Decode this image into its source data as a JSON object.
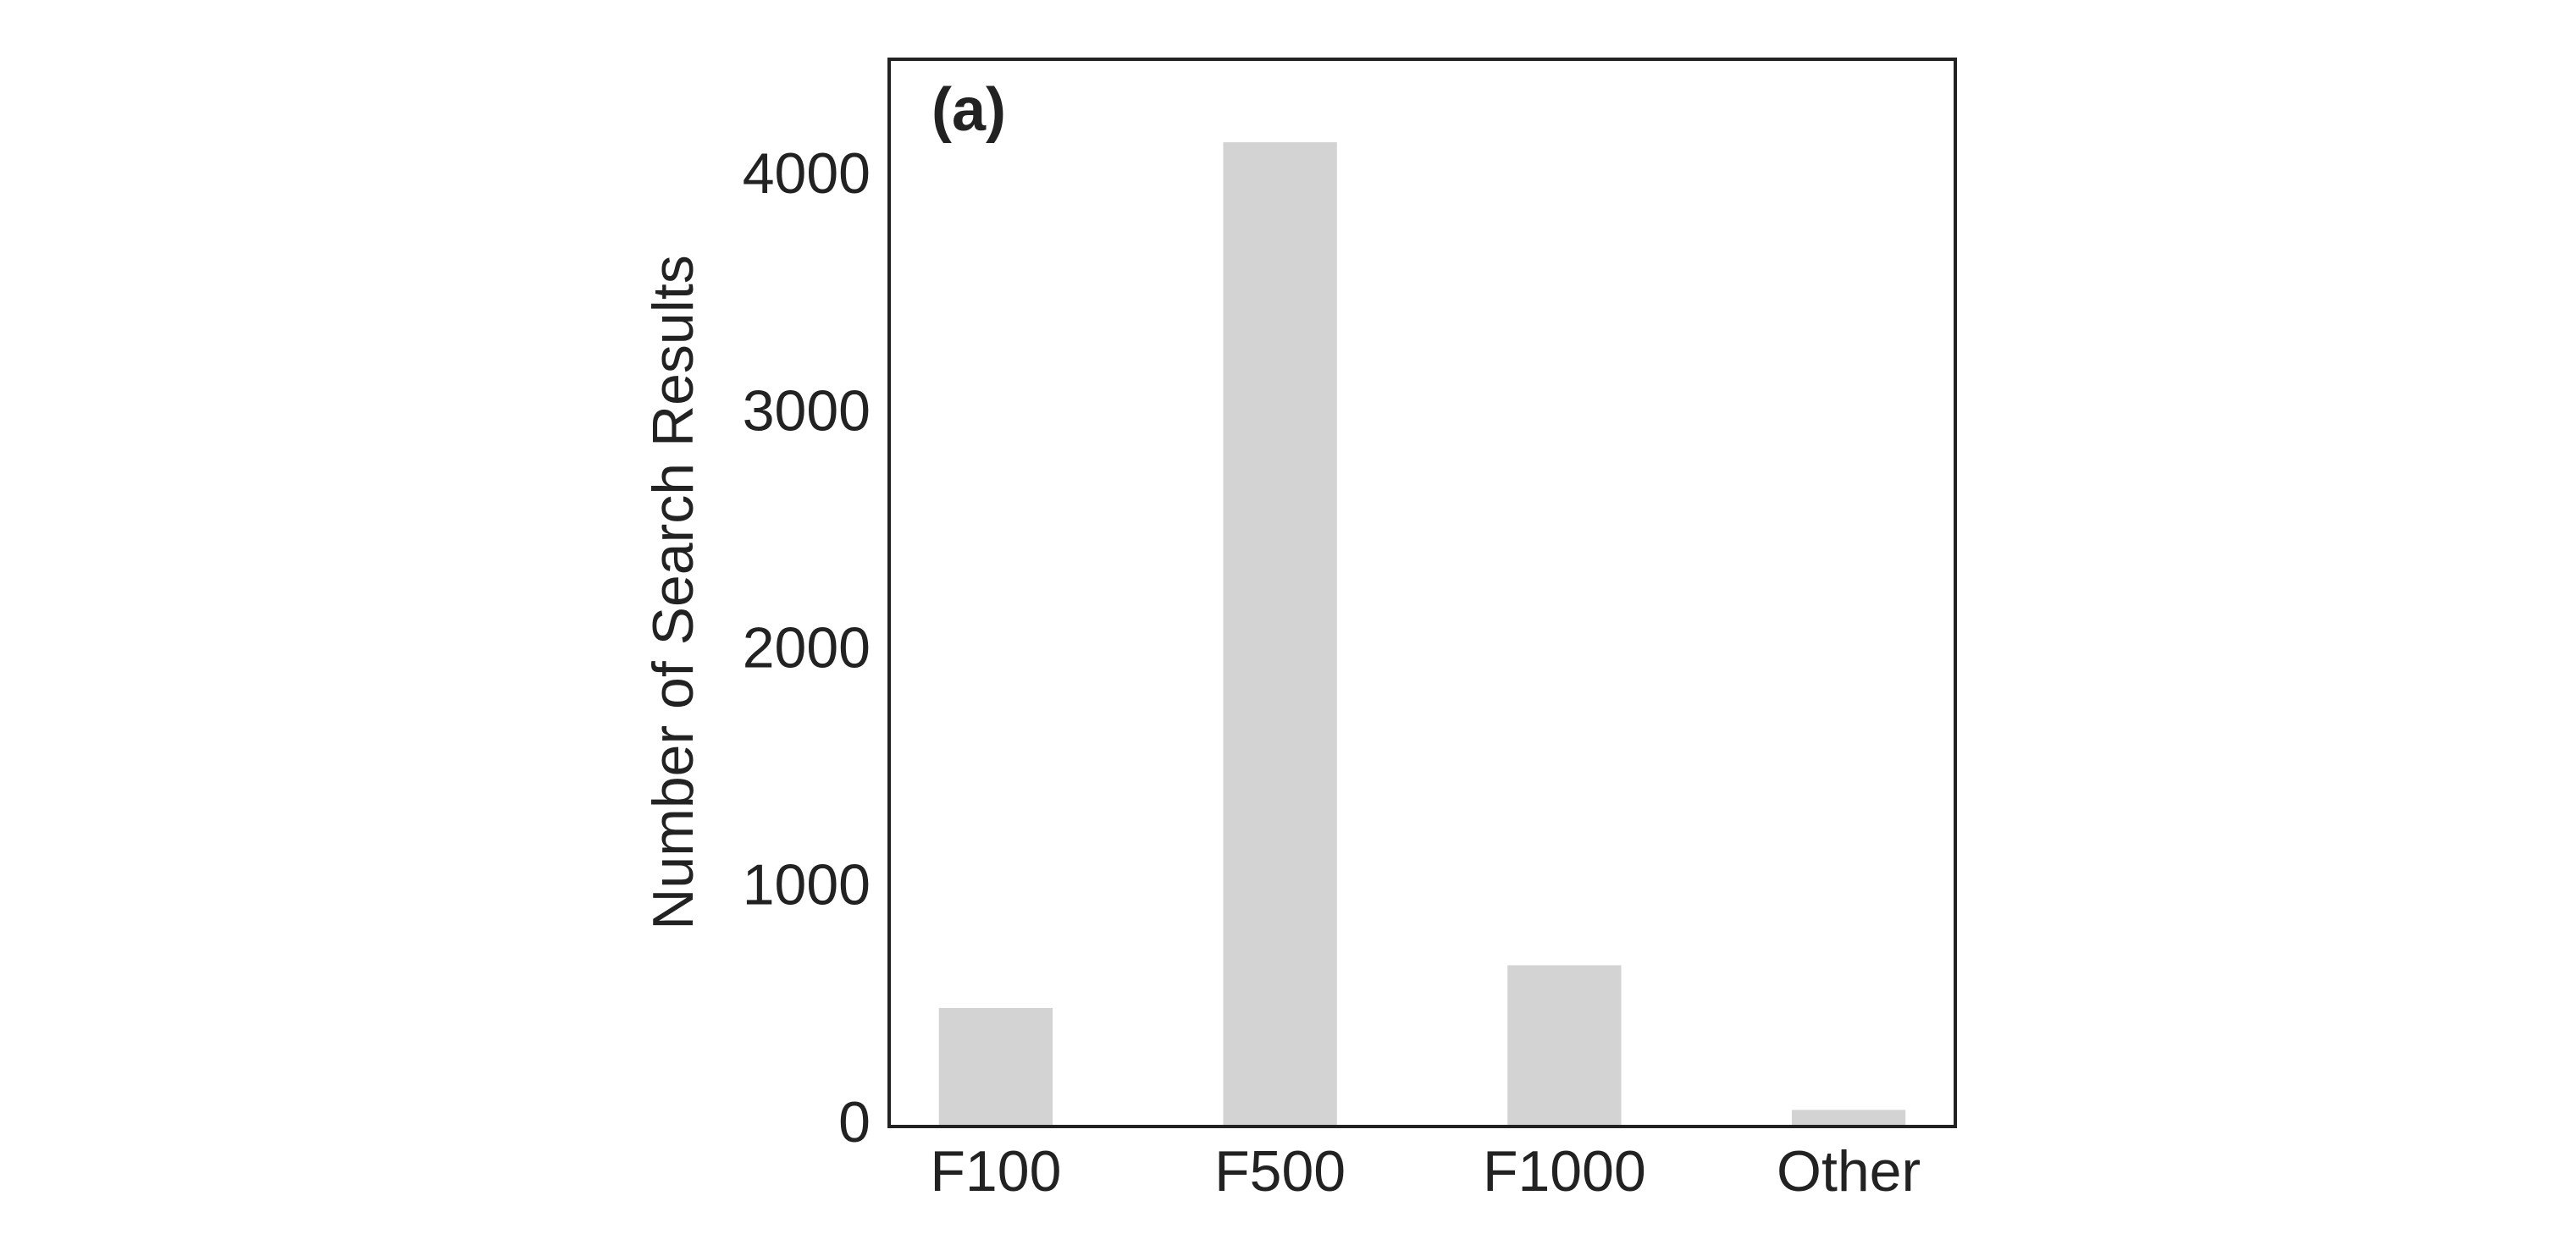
{
  "chart_data": {
    "type": "bar",
    "panel_label": "(a)",
    "y_label": "Number of Search Results",
    "categories": [
      "F100",
      "F500",
      "F1000",
      "Other"
    ],
    "values": [
      500,
      4150,
      680,
      70
    ],
    "color": "#d3d3d3",
    "ylim": [
      0,
      4500
    ],
    "yticks": [
      0,
      1000,
      2000,
      3000,
      4000
    ],
    "grid": false
  }
}
